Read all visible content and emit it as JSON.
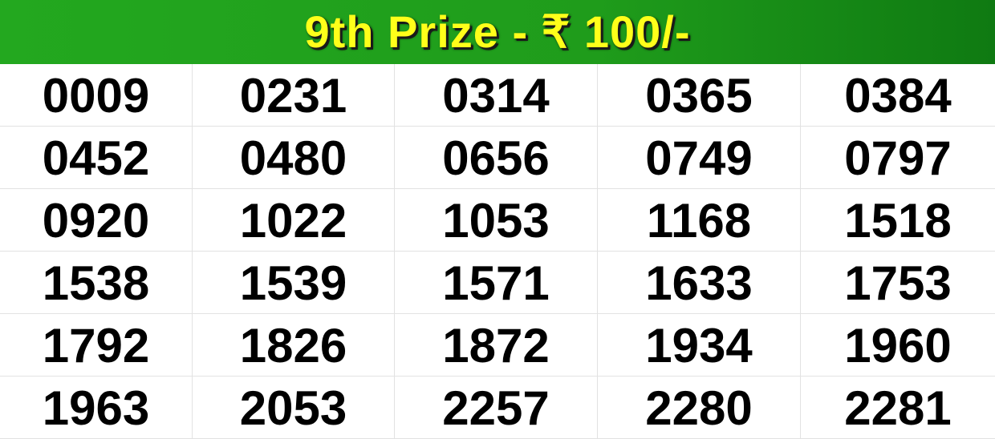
{
  "header": {
    "title": "9th Prize - ₹ 100/-",
    "background_color": "#1f9c1b",
    "text_color": "#ffff1a"
  },
  "numbers": [
    "0009",
    "0231",
    "0314",
    "0365",
    "0384",
    "0452",
    "0480",
    "0656",
    "0749",
    "0797",
    "0920",
    "1022",
    "1053",
    "1168",
    "1518",
    "1538",
    "1539",
    "1571",
    "1633",
    "1753",
    "1792",
    "1826",
    "1872",
    "1934",
    "1960",
    "1963",
    "2053",
    "2257",
    "2280",
    "2281"
  ]
}
